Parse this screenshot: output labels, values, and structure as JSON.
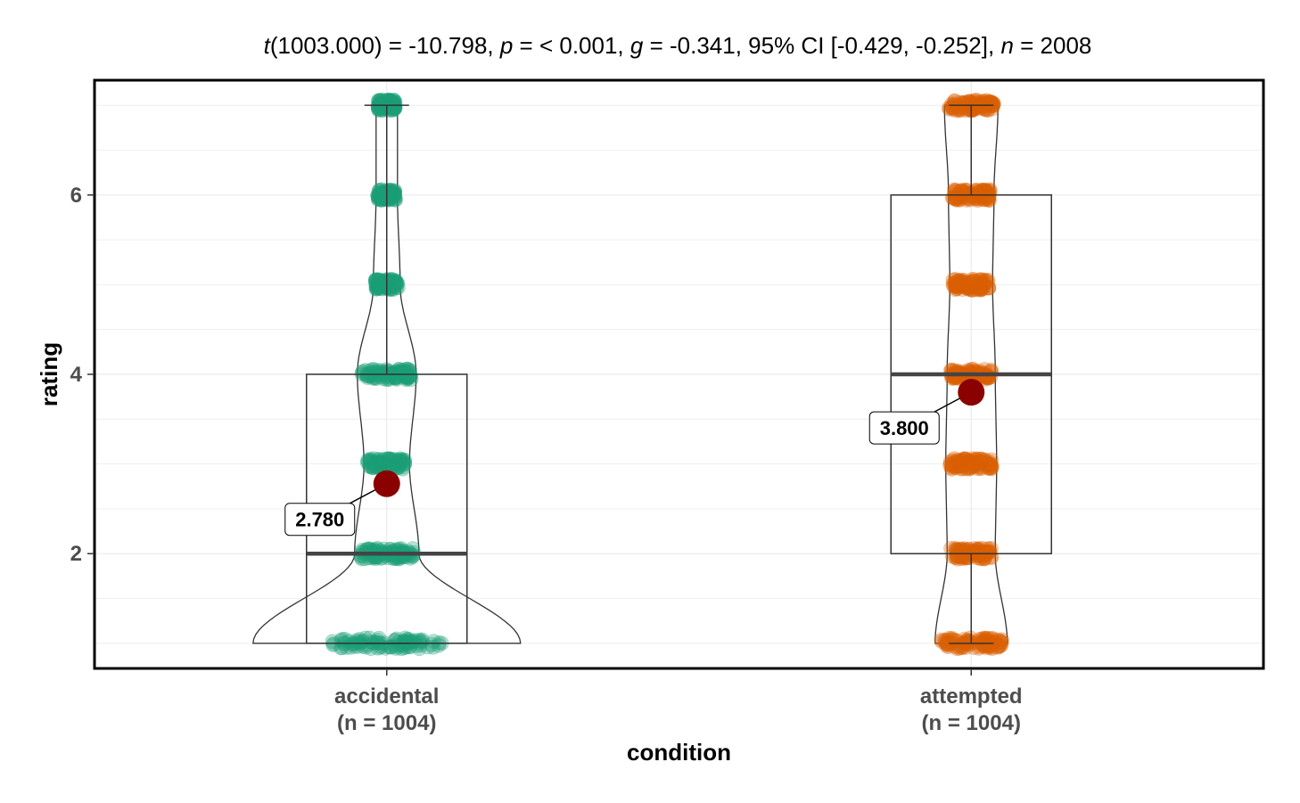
{
  "chart_data": {
    "type": "violin-box-scatter",
    "title_parts": [
      {
        "text": "t",
        "italic": true
      },
      {
        "text": "(1003.000) = -10.798, ",
        "italic": false
      },
      {
        "text": "p",
        "italic": true
      },
      {
        "text": " = < 0.001, ",
        "italic": false
      },
      {
        "text": "g",
        "italic": true
      },
      {
        "text": " = -0.341, 95% CI [-0.429, -0.252], ",
        "italic": false
      },
      {
        "text": "n",
        "italic": true
      },
      {
        "text": " = 2008",
        "italic": false
      }
    ],
    "xlabel": "condition",
    "ylabel": "rating",
    "ylim": [
      0.72,
      7.28
    ],
    "y_ticks": [
      2,
      4,
      6
    ],
    "y_levels": [
      1,
      2,
      3,
      4,
      5,
      6,
      7
    ],
    "grid": true,
    "groups": [
      {
        "category": "accidental",
        "n_label": "(n = 1004)",
        "color": "#1b9e77",
        "box": {
          "min": 1,
          "q1": 1,
          "median": 2,
          "q3": 4,
          "max": 7
        },
        "mean": 2.78,
        "mean_label": "2.780",
        "violin_halfwidth_by_level": {
          "1": 1.0,
          "2": 0.24,
          "3": 0.17,
          "4": 0.22,
          "5": 0.1,
          "6": 0.08,
          "7": 0.08
        }
      },
      {
        "category": "attempted",
        "n_label": "(n = 1004)",
        "color": "#d95f02",
        "box": {
          "min": 1,
          "q1": 2,
          "median": 4,
          "q3": 6,
          "max": 7
        },
        "mean": 3.8,
        "mean_label": "3.800",
        "violin_halfwidth_by_level": {
          "1": 0.27,
          "2": 0.18,
          "3": 0.19,
          "4": 0.18,
          "5": 0.16,
          "6": 0.17,
          "7": 0.2
        }
      }
    ],
    "mean_marker_color": "#8b0000"
  }
}
